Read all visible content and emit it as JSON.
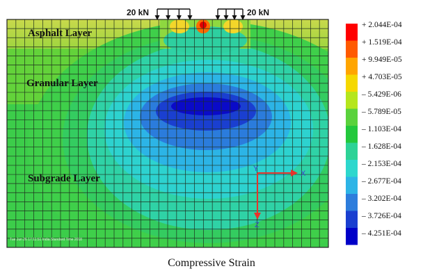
{
  "loads": [
    {
      "label": "20 kN"
    },
    {
      "label": "20 kN"
    }
  ],
  "layers": [
    {
      "label": "Asphalt Layer"
    },
    {
      "label": "Granular Layer"
    },
    {
      "label": "Subgrade Layer"
    }
  ],
  "axes": {
    "y": "Y",
    "x": "X",
    "z": "Z"
  },
  "footer_text": "Tue Jun 26 17:11:51 India Standard Time 2018",
  "caption": "Compressive Strain",
  "legend": {
    "colors": [
      "#ff0000",
      "#ff5a00",
      "#ffa500",
      "#f5d800",
      "#b5e61d",
      "#5ad23c",
      "#23c83c",
      "#2dd296",
      "#2dd7cd",
      "#2db4e6",
      "#2d7ddc",
      "#1a3fd0",
      "#0000c8"
    ],
    "labels": [
      "+ 2.044E-04",
      "+ 1.519E-04",
      "+ 9.949E-05",
      "+ 4.703E-05",
      "– 5.429E-06",
      "– 5.789E-05",
      "– 1.103E-04",
      "– 1.628E-04",
      "– 2.153E-04",
      "– 2.677E-04",
      "– 3.202E-04",
      "– 3.726E-04",
      "– 4.251E-04"
    ]
  },
  "colors": {
    "asphalt": "#c8d64a",
    "granular": "#62d23a",
    "subgrade": "#44cf50",
    "axis_red": "#e8322a",
    "axis_blue": "#3c46d2"
  }
}
